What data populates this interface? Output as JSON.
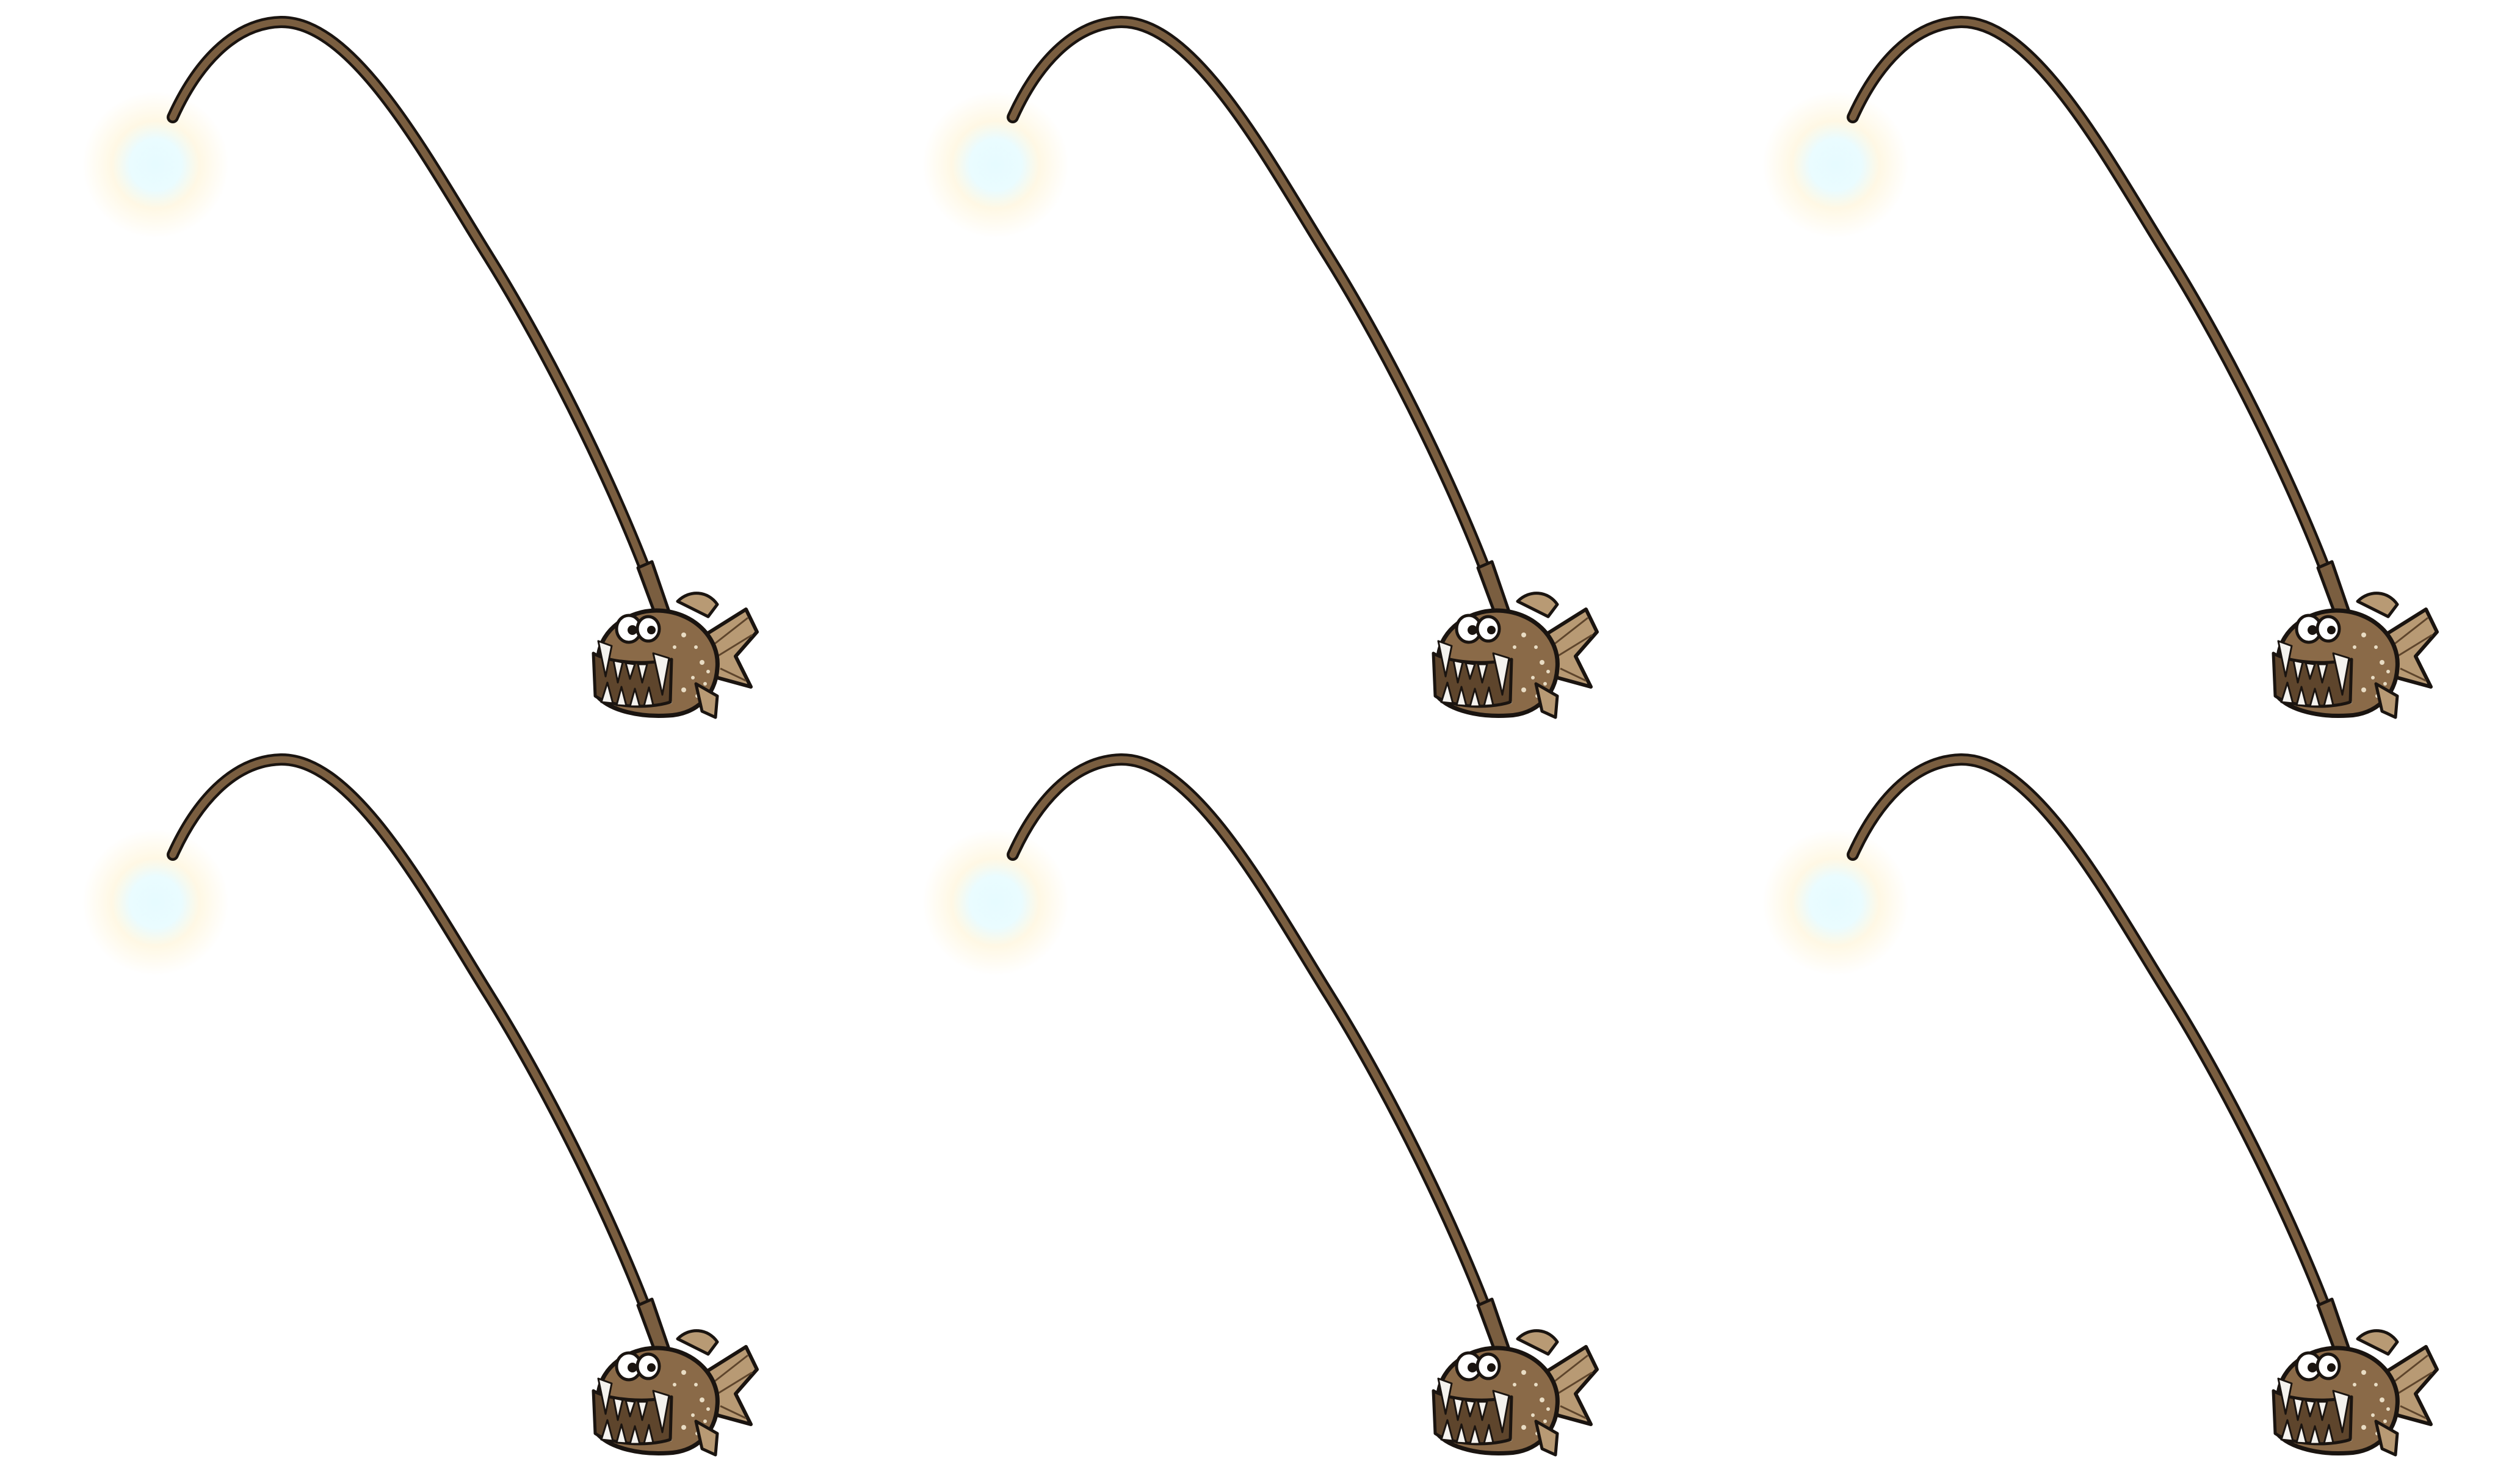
{
  "sprite_sheet": {
    "subject": "anglerfish",
    "frames": [
      {
        "index": 1,
        "sprite": "anglerfish-icon"
      },
      {
        "index": 2,
        "sprite": "anglerfish-icon"
      },
      {
        "index": 3,
        "sprite": "anglerfish-icon"
      },
      {
        "index": 4,
        "sprite": "anglerfish-icon"
      },
      {
        "index": 5,
        "sprite": "anglerfish-icon"
      },
      {
        "index": 6,
        "sprite": "anglerfish-icon"
      }
    ],
    "colors": {
      "background": "#ffffff",
      "body": "#8a6a48",
      "body_dark": "#5e452c",
      "spots": "#e8dcc4",
      "outline": "#1a1410",
      "lure_stem": "#7a5e40",
      "lure_glow": "#fff6dc",
      "lure_core": "#e6fbff",
      "fin": "#b89a74",
      "teeth": "#f4f2ee",
      "eye_white": "#ffffff"
    }
  }
}
